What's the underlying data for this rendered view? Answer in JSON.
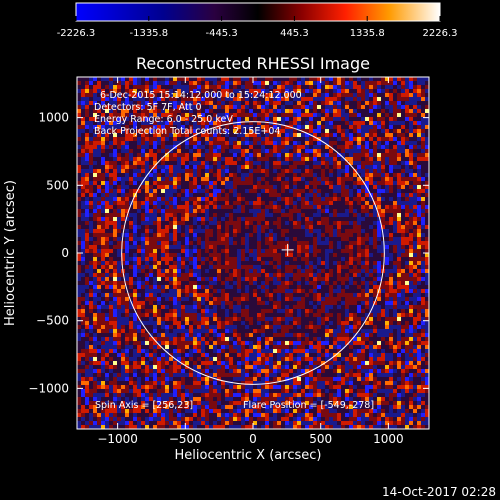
{
  "colorbar": {
    "ticks": [
      "-2226.3",
      "-1335.8",
      "-445.3",
      "445.3",
      "1335.8",
      "2226.3"
    ],
    "min": -2226.3,
    "max": 2226.3
  },
  "chart_data": {
    "type": "heatmap",
    "title": "Reconstructed RHESSI Image",
    "xlabel": "Heliocentric X (arcsec)",
    "ylabel": "Heliocentric Y (arcsec)",
    "xlim": [
      -1300,
      1300
    ],
    "ylim": [
      -1300,
      1300
    ],
    "xticks": [
      -1000,
      -500,
      0,
      500,
      1000
    ],
    "yticks": [
      -1000,
      -500,
      0,
      500,
      1000
    ],
    "xtick_labels": [
      "−1000",
      "−500",
      "0",
      "500",
      "1000"
    ],
    "ytick_labels": [
      "−1000",
      "−500",
      "0",
      "500",
      "1000"
    ],
    "annotations": [
      "6-Dec-2015 15:14:12.000 to 15:24:12.000",
      "Detectors: 5F 7F, Att 0",
      "Energy Range: 6.0 - 25.0 keV",
      "Back Projection    Total counts: 2.15E+04"
    ],
    "bottom_annotations": {
      "spin_axis": "Spin Axis = [256,23]",
      "flare_position": "Flare Position = [-549,-278]"
    },
    "solar_disk_radius_arcsec": 970,
    "crosshair_position": [
      256,
      23
    ]
  },
  "footer": {
    "timestamp": "14-Oct-2017 02:28"
  }
}
